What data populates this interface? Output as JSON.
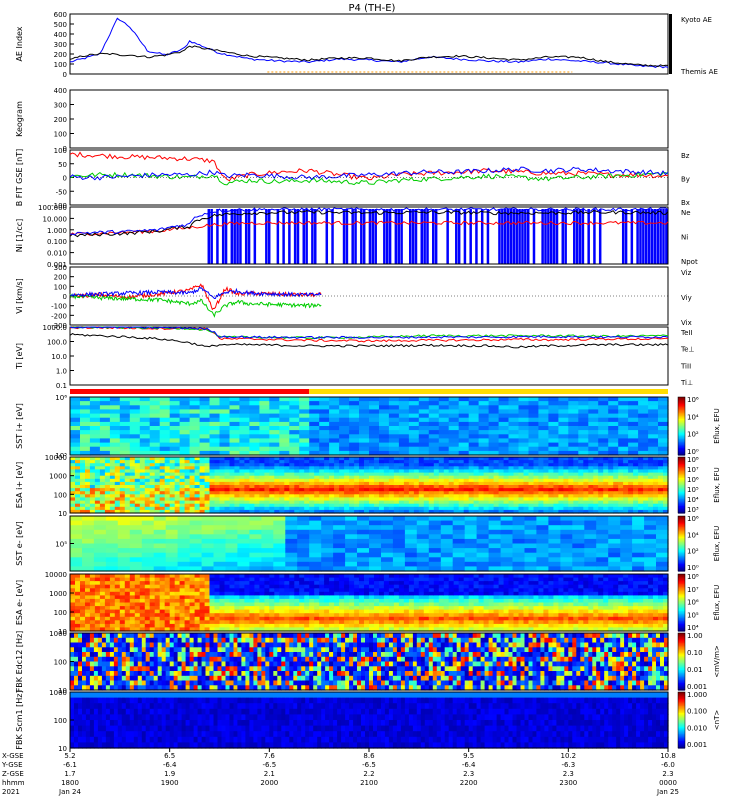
{
  "title": "P4 (TH-E)",
  "colors": {
    "blue": "#0000ff",
    "red": "#ff0000",
    "green": "#00cc00",
    "black": "#000000",
    "orange": "#ff9900",
    "yellow": "#ffdd00"
  },
  "chart_data": [
    {
      "type": "line",
      "panel": "ae",
      "ylabel": "AE Index",
      "ylim": [
        0,
        600
      ],
      "yticks": [
        "600",
        "500",
        "400",
        "300",
        "200",
        "100",
        "0"
      ],
      "legend": [
        "Kyoto AE",
        "Themis AE"
      ],
      "x": [
        0,
        0.02,
        0.05,
        0.07,
        0.08,
        0.1,
        0.13,
        0.16,
        0.19,
        0.2,
        0.25,
        0.3,
        0.35,
        0.4,
        0.45,
        0.5,
        0.55,
        0.6,
        0.65,
        0.7,
        0.75,
        0.8,
        0.85,
        0.9,
        0.95,
        1.0
      ],
      "series": [
        {
          "name": "Kyoto AE",
          "color": "blue",
          "values": [
            120,
            150,
            200,
            440,
            560,
            470,
            230,
            190,
            250,
            330,
            210,
            150,
            130,
            120,
            150,
            140,
            120,
            170,
            150,
            130,
            120,
            150,
            130,
            110,
            80,
            70
          ]
        },
        {
          "name": "Themis AE",
          "color": "black",
          "values": [
            140,
            180,
            200,
            200,
            190,
            190,
            170,
            190,
            230,
            280,
            230,
            180,
            160,
            140,
            160,
            160,
            130,
            170,
            180,
            160,
            140,
            170,
            170,
            120,
            90,
            80
          ]
        }
      ]
    },
    {
      "type": "heatmap",
      "panel": "keogram",
      "ylabel": "Keogram",
      "ylim": [
        0,
        400
      ],
      "yticks": [
        "400",
        "300",
        "200",
        "100",
        "0"
      ],
      "note": "empty panel"
    },
    {
      "type": "line",
      "panel": "bfit",
      "ylabel": "B FIT GSE [nT]",
      "ylim": [
        -100,
        100
      ],
      "yticks": [
        "100",
        "50",
        "0",
        "-50",
        "-100"
      ],
      "legend": [
        "Bz",
        "By",
        "Bx"
      ],
      "x": [
        0,
        0.05,
        0.1,
        0.15,
        0.2,
        0.24,
        0.26,
        0.3,
        0.35,
        0.4,
        0.45,
        0.5,
        0.55,
        0.6,
        0.65,
        0.7,
        0.75,
        0.8,
        0.85,
        0.9,
        0.95,
        1.0
      ],
      "series": [
        {
          "name": "Bz",
          "color": "red",
          "values": [
            85,
            80,
            75,
            72,
            68,
            60,
            -10,
            10,
            20,
            25,
            10,
            -5,
            10,
            15,
            20,
            25,
            20,
            15,
            15,
            10,
            10,
            5
          ]
        },
        {
          "name": "By",
          "color": "green",
          "values": [
            5,
            10,
            10,
            5,
            0,
            10,
            -20,
            -10,
            -15,
            -10,
            -15,
            -20,
            -10,
            -5,
            0,
            5,
            0,
            -5,
            0,
            5,
            10,
            15
          ]
        },
        {
          "name": "Bx",
          "color": "blue",
          "values": [
            2,
            0,
            5,
            10,
            10,
            20,
            5,
            10,
            5,
            0,
            5,
            10,
            15,
            20,
            20,
            25,
            30,
            25,
            30,
            25,
            20,
            15
          ]
        }
      ]
    },
    {
      "type": "line",
      "panel": "density",
      "ylabel": "Ni [1/cc]",
      "ylim": [
        0.001,
        100
      ],
      "yticks": [
        "100.000",
        "10.000",
        "1.000",
        "0.100",
        "0.010",
        "0.001"
      ],
      "legend": [
        "Ne",
        "Ni",
        "Npot"
      ],
      "x": [
        0,
        0.05,
        0.1,
        0.15,
        0.2,
        0.25,
        0.3,
        0.4,
        0.5,
        0.6,
        0.7,
        0.8,
        0.9,
        1.0
      ],
      "series": [
        {
          "name": "Ne",
          "color": "red",
          "values": [
            0.4,
            0.5,
            0.6,
            0.8,
            1.5,
            3,
            4,
            4,
            4,
            4,
            4,
            4,
            4,
            4
          ]
        },
        {
          "name": "Ni",
          "color": "black",
          "values": [
            0.3,
            0.4,
            0.5,
            0.8,
            2,
            20,
            30,
            35,
            30,
            35,
            30,
            30,
            35,
            30
          ]
        },
        {
          "name": "Npot",
          "color": "blue",
          "values": [
            0.5,
            0.6,
            0.7,
            1,
            3,
            50,
            60,
            60,
            60,
            60,
            60,
            60,
            60,
            60
          ]
        }
      ]
    },
    {
      "type": "line",
      "panel": "velocity",
      "ylabel": "Vi [km/s]",
      "ylim": [
        -300,
        300
      ],
      "yticks": [
        "300",
        "200",
        "100",
        "0",
        "-100",
        "-200",
        "-300"
      ],
      "legend": [
        "Viz",
        "Viy",
        "Vix"
      ],
      "x": [
        0,
        0.05,
        0.1,
        0.15,
        0.2,
        0.22,
        0.24,
        0.26,
        0.28,
        0.3,
        0.35,
        0.4,
        0.42
      ],
      "series": [
        {
          "name": "Viz",
          "color": "red",
          "values": [
            0,
            10,
            -10,
            20,
            60,
            120,
            -150,
            80,
            20,
            30,
            20,
            10,
            15
          ]
        },
        {
          "name": "Viy",
          "color": "green",
          "values": [
            0,
            -20,
            -30,
            -40,
            -80,
            -50,
            -200,
            -100,
            -60,
            -80,
            -90,
            -100,
            -90
          ]
        },
        {
          "name": "Vix",
          "color": "blue",
          "values": [
            10,
            20,
            30,
            40,
            30,
            80,
            -20,
            40,
            50,
            30,
            20,
            10,
            20
          ]
        }
      ]
    },
    {
      "type": "line",
      "panel": "temperature",
      "ylabel": "Ti [eV]",
      "ylim": [
        0.1,
        1000
      ],
      "yticks": [
        "1000.0",
        "100.0",
        "10.0",
        "1.0",
        "0.1"
      ],
      "legend": [
        "TeII",
        "Te⊥",
        "TiII",
        "Ti⊥"
      ],
      "x": [
        0,
        0.05,
        0.1,
        0.15,
        0.2,
        0.23,
        0.25,
        0.3,
        0.4,
        0.5,
        0.6,
        0.7,
        0.75,
        0.8,
        0.9,
        1.0
      ],
      "series": [
        {
          "name": "TeII",
          "color": "black",
          "values": [
            300,
            250,
            200,
            150,
            80,
            40,
            60,
            60,
            50,
            50,
            55,
            50,
            40,
            50,
            60,
            60
          ]
        },
        {
          "name": "Te⊥",
          "color": "red",
          "values": [
            900,
            900,
            850,
            800,
            800,
            700,
            150,
            150,
            120,
            110,
            120,
            130,
            140,
            130,
            150,
            150
          ]
        },
        {
          "name": "TiII",
          "color": "green",
          "values": [
            1000,
            950,
            900,
            850,
            800,
            600,
            200,
            200,
            180,
            200,
            250,
            250,
            250,
            250,
            230,
            250
          ]
        },
        {
          "name": "Ti⊥",
          "color": "blue",
          "values": [
            1000,
            1000,
            950,
            900,
            850,
            700,
            220,
            200,
            190,
            190,
            200,
            200,
            210,
            220,
            200,
            210
          ]
        }
      ]
    },
    {
      "type": "heatmap",
      "panel": "sst_ion",
      "ylabel": "SST i+ [eV]",
      "yticks": [
        "10⁶",
        "10⁵"
      ],
      "cbar_label": "Eflux, EFU",
      "cbar_ticks": [
        "10⁶",
        "10⁴",
        "10²",
        "10⁰"
      ]
    },
    {
      "type": "heatmap",
      "panel": "esa_ion",
      "ylabel": "ESA i+ [eV]",
      "yticks": [
        "10000",
        "1000",
        "100",
        "10"
      ],
      "cbar_label": "Eflux, EFU",
      "cbar_ticks": [
        "10⁸",
        "10⁷",
        "10⁶",
        "10⁵",
        "10⁴",
        "10³"
      ]
    },
    {
      "type": "heatmap",
      "panel": "sst_elec",
      "ylabel": "SST e- [eV]",
      "yticks": [
        "10⁵"
      ],
      "cbar_label": "Eflux, EFU",
      "cbar_ticks": [
        "10⁶",
        "10⁴",
        "10²",
        "10⁰"
      ]
    },
    {
      "type": "heatmap",
      "panel": "esa_elec",
      "ylabel": "ESA e- [eV]",
      "yticks": [
        "10000",
        "1000",
        "100",
        "10"
      ],
      "cbar_label": "Eflux, EFU",
      "cbar_ticks": [
        "10⁸",
        "10⁷",
        "10⁶",
        "10⁵",
        "10⁴"
      ]
    },
    {
      "type": "heatmap",
      "panel": "fbk_edc",
      "ylabel": "FBK Edc12 [Hz]",
      "yticks": [
        "1000",
        "100",
        "10"
      ],
      "cbar_label": "<mV/m>",
      "cbar_ticks": [
        "1.00",
        "0.10",
        "0.01",
        "0.001"
      ]
    },
    {
      "type": "heatmap",
      "panel": "fbk_scm",
      "ylabel": "FBK Scm1 [Hz]",
      "yticks": [
        "1000",
        "100",
        "10"
      ],
      "cbar_label": "<nT>",
      "cbar_ticks": [
        "1.000",
        "0.100",
        "0.010",
        "0.001"
      ]
    }
  ],
  "xaxis": {
    "row_labels": [
      "X-GSE",
      "Y-GSE",
      "Z-GSE",
      "hhmm",
      "2021"
    ],
    "ticks": [
      {
        "x": "5.2",
        "y": "-6.1",
        "z": "1.7",
        "hhmm": "1800",
        "date": "Jan 24"
      },
      {
        "x": "6.5",
        "y": "-6.4",
        "z": "1.9",
        "hhmm": "1900",
        "date": ""
      },
      {
        "x": "7.6",
        "y": "-6.5",
        "z": "2.1",
        "hhmm": "2000",
        "date": ""
      },
      {
        "x": "8.6",
        "y": "-6.5",
        "z": "2.2",
        "hhmm": "2100",
        "date": ""
      },
      {
        "x": "9.5",
        "y": "-6.4",
        "z": "2.3",
        "hhmm": "2200",
        "date": ""
      },
      {
        "x": "10.2",
        "y": "-6.3",
        "z": "2.3",
        "hhmm": "2300",
        "date": ""
      },
      {
        "x": "10.8",
        "y": "-6.0",
        "z": "2.3",
        "hhmm": "0000",
        "date": "Jan 25"
      }
    ]
  }
}
